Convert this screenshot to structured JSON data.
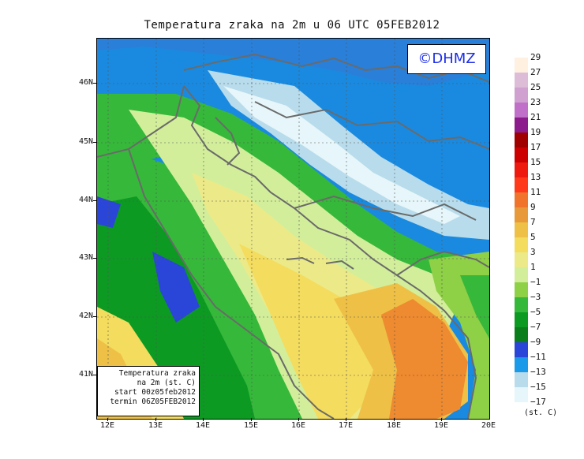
{
  "title": "Temperatura zraka na 2m u 06 UTC 05FEB2012",
  "logo_text": "©DHMZ",
  "info": {
    "line1": "Temperatura zraka",
    "line2": "na 2m (st. C)",
    "line3": "start 00z05feb2012",
    "line4": "termin 06Z05FEB2012"
  },
  "lat_labels": [
    "46N",
    "45N",
    "44N",
    "43N",
    "42N",
    "41N"
  ],
  "lon_labels": [
    "12E",
    "13E",
    "14E",
    "15E",
    "16E",
    "17E",
    "18E",
    "19E",
    "20E"
  ],
  "legend": {
    "unit": "(st. C)",
    "labels": [
      "29",
      "27",
      "25",
      "23",
      "21",
      "19",
      "17",
      "15",
      "13",
      "11",
      "9",
      "7",
      "5",
      "3",
      "1",
      "−1",
      "−3",
      "−5",
      "−7",
      "−9",
      "−11",
      "−13",
      "−15",
      "−17"
    ],
    "colors": [
      "#fff0e0",
      "#ddbcd8",
      "#cfa0d0",
      "#c070c8",
      "#8c1c8c",
      "#a00000",
      "#cc0000",
      "#ee1a10",
      "#ff3a1a",
      "#f0742c",
      "#e89a3a",
      "#eec046",
      "#f4dc5e",
      "#ecea88",
      "#d2ee9a",
      "#8ed046",
      "#36b83a",
      "#0c9a22",
      "#0a7e1a",
      "#2a46d8",
      "#1a9ae8",
      "#b8dceb",
      "#e6f6fa",
      "#ffffff"
    ]
  },
  "colors": {
    "sea_deep": "#2a7fd8",
    "land_green": "#36b83a",
    "warm_orange": "#ee8a30"
  }
}
